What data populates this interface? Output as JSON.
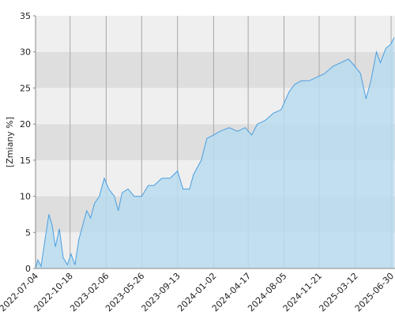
{
  "chart_data": {
    "type": "area",
    "y_label": "[Zmiany %]",
    "x": [
      "2022-07-04",
      "2022-07-11",
      "2022-07-21",
      "2022-08-02",
      "2022-08-14",
      "2022-08-24",
      "2022-09-03",
      "2022-09-15",
      "2022-09-27",
      "2022-10-10",
      "2022-10-21",
      "2022-11-02",
      "2022-11-14",
      "2022-11-26",
      "2022-12-08",
      "2022-12-20",
      "2023-01-01",
      "2023-01-16",
      "2023-01-31",
      "2023-02-14",
      "2023-03-03",
      "2023-03-15",
      "2023-03-27",
      "2023-04-14",
      "2023-05-03",
      "2023-05-26",
      "2023-06-15",
      "2023-07-03",
      "2023-07-27",
      "2023-08-21",
      "2023-09-13",
      "2023-09-30",
      "2023-10-20",
      "2023-11-01",
      "2023-11-25",
      "2023-12-12",
      "2024-01-02",
      "2024-01-21",
      "2024-02-19",
      "2024-03-15",
      "2024-04-08",
      "2024-04-28",
      "2024-05-15",
      "2024-06-08",
      "2024-07-03",
      "2024-07-27",
      "2024-08-21",
      "2024-09-07",
      "2024-09-27",
      "2024-10-21",
      "2024-11-14",
      "2024-12-08",
      "2025-01-02",
      "2025-01-26",
      "2025-02-19",
      "2025-03-11",
      "2025-03-28",
      "2025-04-14",
      "2025-04-29",
      "2025-05-16",
      "2025-05-28",
      "2025-06-14",
      "2025-06-28",
      "2025-07-10"
    ],
    "series": [
      {
        "color": "#4a9ee0",
        "fill": "#b9dcee",
        "values": [
          0,
          1.2,
          0.3,
          4,
          7.5,
          6,
          3,
          5.5,
          1.5,
          0.5,
          2,
          0.5,
          4,
          6,
          8,
          7,
          9,
          10,
          12.5,
          11,
          10,
          8,
          10.5,
          11,
          10,
          10,
          11.5,
          11.5,
          12.5,
          12.5,
          13.5,
          11,
          11,
          13,
          15,
          18,
          18.5,
          19,
          19.5,
          19,
          19.5,
          18.5,
          20,
          20.5,
          21.5,
          22,
          24.5,
          25.5,
          26,
          26,
          26.5,
          27,
          28,
          28.5,
          29,
          28,
          27,
          23.5,
          26,
          30,
          28.5,
          30.5,
          31,
          32
        ]
      }
    ],
    "xlim": [
      "2022-07-04",
      "2025-07-12"
    ],
    "xticks": [
      "2022-07-04",
      "2022-10-18",
      "2023-02-06",
      "2023-05-26",
      "2023-09-13",
      "2024-01-02",
      "2024-04-17",
      "2024-08-05",
      "2024-11-21",
      "2025-03-12",
      "2025-06-30"
    ],
    "ylim": [
      0,
      35
    ],
    "yticks": [
      0,
      5,
      10,
      15,
      20,
      25,
      30,
      35
    ],
    "band_colors": [
      "#efefef",
      "#dedede"
    ],
    "grid": true
  }
}
